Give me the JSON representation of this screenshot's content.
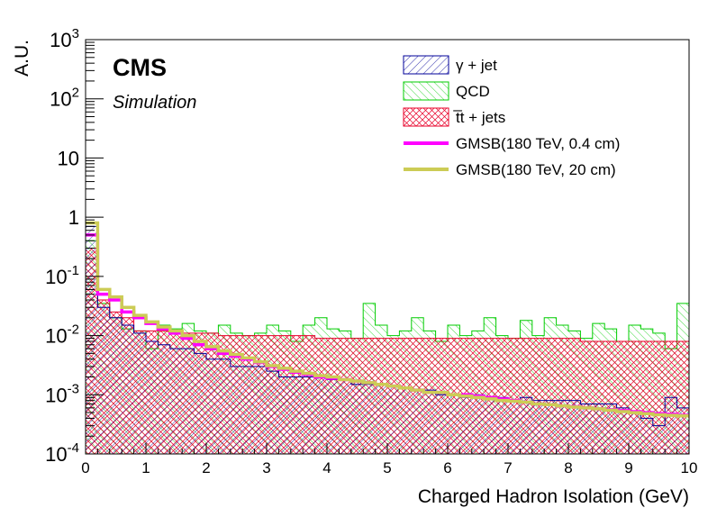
{
  "chart_data": {
    "type": "histogram",
    "xlabel": "Charged Hadron Isolation (GeV)",
    "ylabel": "A.U.",
    "xlim": [
      0,
      10
    ],
    "ylim": [
      0.0001,
      1000
    ],
    "yscale": "log",
    "x_ticks": [
      "0",
      "1",
      "2",
      "3",
      "4",
      "5",
      "6",
      "7",
      "8",
      "9",
      "10"
    ],
    "y_ticks": [
      {
        "base": "10",
        "exp": "-4"
      },
      {
        "base": "10",
        "exp": "-3"
      },
      {
        "base": "10",
        "exp": "-2"
      },
      {
        "base": "10",
        "exp": "-1"
      },
      {
        "base": "1",
        "exp": ""
      },
      {
        "base": "10",
        "exp": ""
      },
      {
        "base": "10",
        "exp": "2"
      },
      {
        "base": "10",
        "exp": "3"
      }
    ],
    "bins": 50,
    "bin_width": 0.2,
    "legend_position": "top-right",
    "cms_label": "CMS",
    "cms_sublabel": "Simulation",
    "series": [
      {
        "name": "QCD",
        "style": "hatch-green",
        "color": "#00cc00",
        "values": [
          0.4,
          0.035,
          0.02,
          0.013,
          0.012,
          0.006,
          0.015,
          0.013,
          0.016,
          0.012,
          0.011,
          0.015,
          0.011,
          0.01,
          0.011,
          0.015,
          0.012,
          0.008,
          0.015,
          0.02,
          0.013,
          0.012,
          0.009,
          0.035,
          0.015,
          0.01,
          0.012,
          0.02,
          0.012,
          0.008,
          0.015,
          0.01,
          0.012,
          0.02,
          0.01,
          0.009,
          0.018,
          0.01,
          0.02,
          0.015,
          0.012,
          0.009,
          0.016,
          0.013,
          0.008,
          0.015,
          0.013,
          0.011,
          0.006,
          0.035
        ]
      },
      {
        "name": "t̅t + jets",
        "style": "crosshatch-red",
        "color": "#e8002a",
        "values": [
          0.3,
          0.04,
          0.025,
          0.02,
          0.012,
          0.012,
          0.012,
          0.011,
          0.011,
          0.011,
          0.011,
          0.01,
          0.01,
          0.01,
          0.01,
          0.01,
          0.01,
          0.01,
          0.01,
          0.009,
          0.009,
          0.009,
          0.009,
          0.009,
          0.009,
          0.009,
          0.009,
          0.009,
          0.009,
          0.009,
          0.009,
          0.009,
          0.009,
          0.009,
          0.009,
          0.009,
          0.009,
          0.009,
          0.009,
          0.009,
          0.009,
          0.008,
          0.008,
          0.008,
          0.008,
          0.008,
          0.008,
          0.008,
          0.008,
          0.008
        ]
      },
      {
        "name": "γ + jet",
        "style": "hatch-blue",
        "color": "#000099",
        "values": [
          0.7,
          0.03,
          0.02,
          0.015,
          0.011,
          0.008,
          0.007,
          0.006,
          0.006,
          0.005,
          0.004,
          0.004,
          0.003,
          0.003,
          0.003,
          0.0025,
          0.002,
          0.002,
          0.002,
          0.002,
          0.0018,
          0.0018,
          0.0015,
          0.0015,
          0.0015,
          0.0014,
          0.0013,
          0.0012,
          0.0012,
          0.001,
          0.001,
          0.0009,
          0.001,
          0.0009,
          0.0009,
          0.0008,
          0.0009,
          0.0008,
          0.0008,
          0.0008,
          0.0008,
          0.0007,
          0.0007,
          0.0007,
          0.0006,
          0.0005,
          0.0004,
          0.0003,
          0.0009,
          0.0006
        ]
      },
      {
        "name": "GMSB(180 TeV, 0.4 cm)",
        "style": "line",
        "color": "#ff00ff",
        "values": [
          0.5,
          0.05,
          0.04,
          0.025,
          0.02,
          0.016,
          0.013,
          0.011,
          0.009,
          0.007,
          0.006,
          0.005,
          0.0045,
          0.004,
          0.0035,
          0.003,
          0.0027,
          0.0024,
          0.0022,
          0.002,
          0.0019,
          0.0018,
          0.0017,
          0.0016,
          0.0015,
          0.0014,
          0.0013,
          0.0012,
          0.0011,
          0.0011,
          0.001,
          0.001,
          0.00095,
          0.0009,
          0.00085,
          0.0008,
          0.00075,
          0.0007,
          0.00068,
          0.00065,
          0.00063,
          0.0006,
          0.00058,
          0.00056,
          0.00054,
          0.00052,
          0.0005,
          0.00048,
          0.00047,
          0.00045
        ]
      },
      {
        "name": "GMSB(180 TeV, 20 cm)",
        "style": "line",
        "color": "#cccc55",
        "values": [
          0.8,
          0.06,
          0.045,
          0.03,
          0.022,
          0.017,
          0.014,
          0.012,
          0.01,
          0.008,
          0.0065,
          0.0055,
          0.0048,
          0.0042,
          0.0036,
          0.0031,
          0.0028,
          0.0025,
          0.0023,
          0.0021,
          0.002,
          0.0018,
          0.0017,
          0.0016,
          0.0015,
          0.0014,
          0.0013,
          0.0012,
          0.0011,
          0.0011,
          0.001,
          0.00095,
          0.0009,
          0.00085,
          0.0008,
          0.00078,
          0.00075,
          0.0007,
          0.00068,
          0.00065,
          0.00062,
          0.0006,
          0.00058,
          0.00055,
          0.00052,
          0.0005,
          0.00048,
          0.00046,
          0.00045,
          0.00044
        ]
      }
    ]
  }
}
